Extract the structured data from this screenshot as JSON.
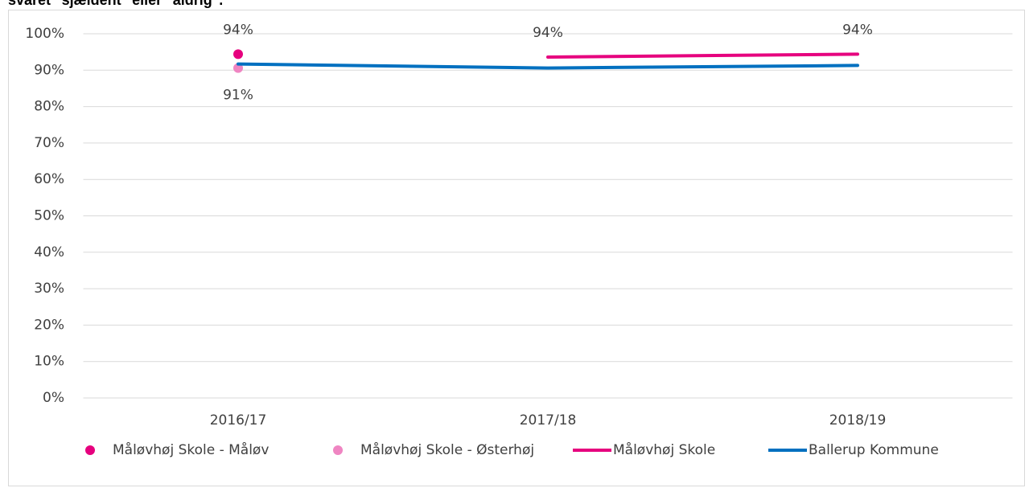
{
  "chart_data": {
    "type": "line",
    "title": "svaret \"sjældent\" eller \"aldrig\".",
    "categories": [
      "2016/17",
      "2017/18",
      "2018/19"
    ],
    "series": [
      {
        "name": "Måløvhøj Skole - Måløv",
        "color": "#e6007e",
        "mode": "markers",
        "values": [
          94.4,
          null,
          null
        ],
        "value_labels": [
          "94%",
          null,
          null
        ]
      },
      {
        "name": "Måløvhøj Skole - Østerhøj",
        "color": "#ef85c2",
        "mode": "markers",
        "values": [
          90.6,
          null,
          null
        ],
        "value_labels": [
          "91%",
          null,
          null
        ]
      },
      {
        "name": "Måløvhøj Skole",
        "color": "#e6007e",
        "mode": "lines",
        "values": [
          null,
          93.6,
          94.4
        ],
        "value_labels": [
          null,
          "94%",
          "94%"
        ]
      },
      {
        "name": "Ballerup Kommune",
        "color": "#0070c0",
        "mode": "lines",
        "values": [
          91.7,
          90.6,
          91.3
        ]
      }
    ],
    "ylim": [
      0,
      100
    ],
    "yticks": [
      {
        "value": 0,
        "label": "0%"
      },
      {
        "value": 10,
        "label": "10%"
      },
      {
        "value": 20,
        "label": "20%"
      },
      {
        "value": 30,
        "label": "30%"
      },
      {
        "value": 40,
        "label": "40%"
      },
      {
        "value": 50,
        "label": "50%"
      },
      {
        "value": 60,
        "label": "60%"
      },
      {
        "value": 70,
        "label": "70%"
      },
      {
        "value": 80,
        "label": "80%"
      },
      {
        "value": 90,
        "label": "90%"
      },
      {
        "value": 100,
        "label": "100%"
      }
    ],
    "grid": true,
    "legend": "bottom"
  }
}
